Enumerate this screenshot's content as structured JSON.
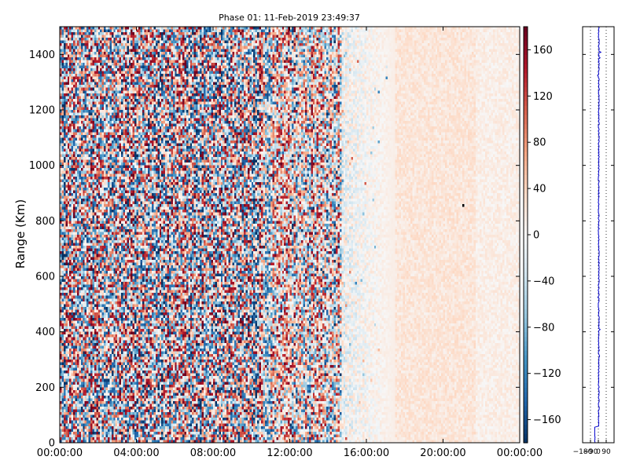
{
  "chart_data": {
    "type": "heatmap",
    "title": "Phase 01: 11-Feb-2019 23:49:37",
    "xlabel": "",
    "ylabel": "Range (Km)",
    "x_ticks": [
      "00:00:00",
      "04:00:00",
      "08:00:00",
      "12:00:00",
      "16:00:00",
      "20:00:00",
      "00:00:00"
    ],
    "xlim": [
      0,
      24
    ],
    "x_units": "hours",
    "y_ticks": [
      0,
      200,
      400,
      600,
      800,
      1000,
      1200,
      1400
    ],
    "ylim": [
      0,
      1500
    ],
    "colorbar": {
      "ticks": [
        160,
        120,
        80,
        40,
        0,
        -40,
        -80,
        -120,
        -160
      ],
      "range": [
        -180,
        180
      ],
      "colormap": "RdBu_r"
    },
    "heatmap_grid": {
      "cols": 240,
      "rows": 150
    },
    "phase_profile": {
      "xlim": [
        -180,
        180
      ],
      "x_ticks": [
        "−180",
        "−90",
        "0",
        "90"
      ],
      "ylim": [
        0,
        1500
      ],
      "line_color": "#0000cc"
    }
  }
}
